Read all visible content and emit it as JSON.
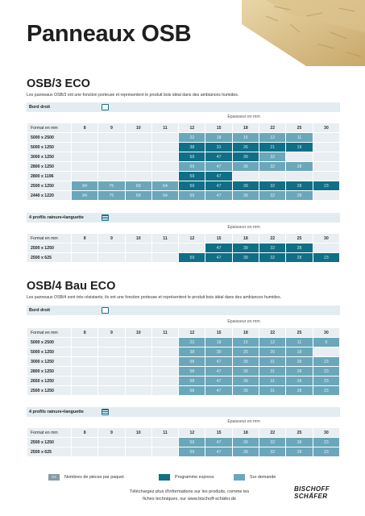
{
  "title": "Panneaux OSB",
  "epaisseur_label": "Epaisseur en mm",
  "format_label": "Format en mm",
  "thickness_cols": [
    "8",
    "9",
    "10",
    "11",
    "12",
    "15",
    "18",
    "22",
    "25",
    "30"
  ],
  "sections": [
    {
      "title": "OSB/3 ECO",
      "desc": "Les panneaux OSB/3 ont une fonction porteuse et représentent le produit bois idéal dans des ambiances humides.",
      "tables": [
        {
          "label": "Bord droit",
          "icon": "panel-edge-straight-icon",
          "rows": [
            {
              "fmt": "5000 x 2500",
              "cells": [
                "",
                "",
                "",
                "",
                "22:s",
                "18:s",
                "15:s",
                "12:s",
                "11:s",
                ""
              ]
            },
            {
              "fmt": "5000 x 1250",
              "cells": [
                "",
                "",
                "",
                "",
                "38:e",
                "31:e",
                "26:e",
                "21:e",
                "19:e",
                ""
              ]
            },
            {
              "fmt": "3000 x 1250",
              "cells": [
                "",
                "",
                "",
                "",
                "59:e",
                "47:e",
                "39:e",
                "32:s",
                "",
                ""
              ]
            },
            {
              "fmt": "2800 x 1250",
              "cells": [
                "",
                "",
                "",
                "",
                "59:s",
                "47:s",
                "39:s",
                "32:s",
                "28:s",
                ""
              ]
            },
            {
              "fmt": "2800 x 1196",
              "cells": [
                "",
                "",
                "",
                "",
                "59:e",
                "47:e",
                "",
                "",
                "",
                ""
              ]
            },
            {
              "fmt": "2500 x 1250",
              "cells": [
                "84:s",
                "75:s",
                "69:s",
                "64:s",
                "59:e",
                "47:e",
                "39:e",
                "32:e",
                "28:e",
                "23:e"
              ]
            },
            {
              "fmt": "2440 x 1220",
              "cells": [
                "84:s",
                "75:s",
                "69:s",
                "64:s",
                "59:s",
                "47:s",
                "39:s",
                "32:s",
                "28:s",
                ""
              ]
            }
          ]
        },
        {
          "label": "4 profils rainure+languette",
          "icon": "tongue-groove-icon",
          "rows": [
            {
              "fmt": "2500 x 1250",
              "cells": [
                "",
                "",
                "",
                "",
                "",
                "47:e",
                "39:e",
                "32:e",
                "28:e",
                ""
              ]
            },
            {
              "fmt": "2500 x 625",
              "cells": [
                "",
                "",
                "",
                "",
                "59:e",
                "47:e",
                "39:e",
                "32:e",
                "28:e",
                "23:e"
              ]
            }
          ]
        }
      ]
    },
    {
      "title": "OSB/4 Bau ECO",
      "desc": "Les panneaux OSB/4 sont très résistants; ils ont une fonction porteuse et représentent le produit bois idéal dans des ambiances humides.",
      "tables": [
        {
          "label": "Bord droit",
          "icon": "panel-edge-straight-icon",
          "rows": [
            {
              "fmt": "5000 x 2500",
              "cells": [
                "",
                "",
                "",
                "",
                "22:s",
                "18:s",
                "15:s",
                "12:s",
                "11:s",
                "9:s"
              ]
            },
            {
              "fmt": "5000 x 1250",
              "cells": [
                "",
                "",
                "",
                "",
                "38:s",
                "30:s",
                "25:s",
                "20:s",
                "18:s",
                ""
              ]
            },
            {
              "fmt": "3000 x 1250",
              "cells": [
                "",
                "",
                "",
                "",
                "58:s",
                "47:s",
                "39:s",
                "31:s",
                "28:s",
                "23:s"
              ]
            },
            {
              "fmt": "2800 x 1250",
              "cells": [
                "",
                "",
                "",
                "",
                "58:s",
                "47:s",
                "39:s",
                "31:s",
                "28:s",
                "23:s"
              ]
            },
            {
              "fmt": "2650 x 1250",
              "cells": [
                "",
                "",
                "",
                "",
                "58:s",
                "47:s",
                "39:s",
                "31:s",
                "28:s",
                "23:s"
              ]
            },
            {
              "fmt": "2500 x 1250",
              "cells": [
                "",
                "",
                "",
                "",
                "58:s",
                "47:s",
                "39:s",
                "31:s",
                "28:s",
                "23:s"
              ]
            }
          ]
        },
        {
          "label": "4 profils rainure+languette",
          "icon": "tongue-groove-icon",
          "rows": [
            {
              "fmt": "2500 x 1250",
              "cells": [
                "",
                "",
                "",
                "",
                "59:s",
                "47:s",
                "39:s",
                "32:s",
                "28:s",
                "23:s"
              ]
            },
            {
              "fmt": "2500 x 625",
              "cells": [
                "",
                "",
                "",
                "",
                "59:s",
                "47:s",
                "39:s",
                "32:s",
                "28:s",
                "23:s"
              ]
            }
          ]
        }
      ]
    }
  ],
  "legend": {
    "pieces_sample": "XX",
    "pieces_label": "Nombres de pièces par paquet",
    "express_label": "Programme express",
    "demand_label": "Sur demande"
  },
  "footer": {
    "line1": "Téléchargez plus d'informations sur les produits, comme les",
    "line2": "fiches techniques, sur www.bischoff-schäfer.de"
  },
  "brand": {
    "line1": "BISCHOFF",
    "line2": "SCHÄFER"
  },
  "colors": {
    "express": "#0f6f86",
    "demand": "#6aa7ba",
    "cell": "#e8eef1",
    "header": "#e3ecf0"
  }
}
